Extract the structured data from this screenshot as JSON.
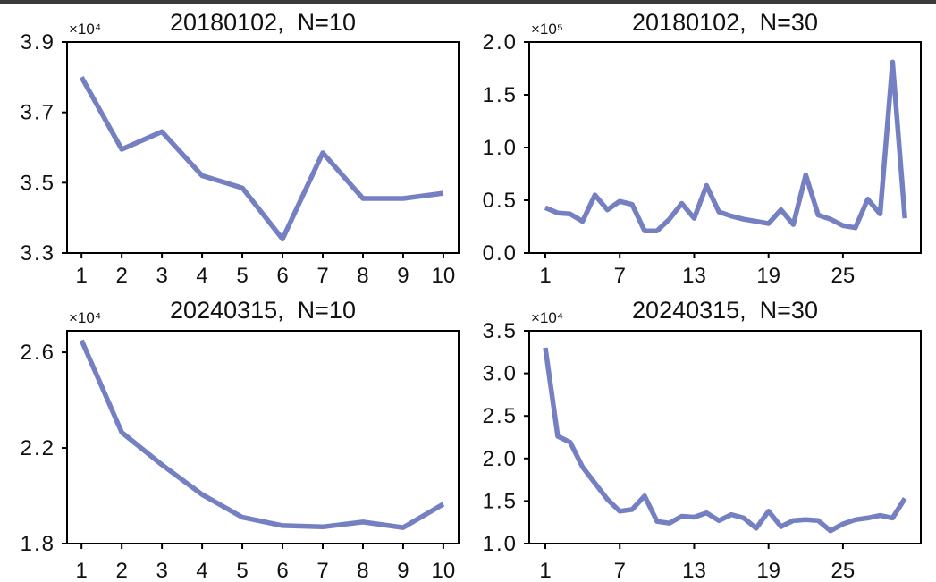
{
  "page": {
    "background": "#ffffff",
    "top_strip_color": "#3a3a3c",
    "axis_color": "#000000",
    "text_color": "#111111"
  },
  "chart_data": [
    {
      "type": "line",
      "title": "20180102,  N=10",
      "series_color": "#7580c2",
      "offset_label": "×10⁴",
      "x": [
        1,
        2,
        3,
        4,
        5,
        6,
        7,
        8,
        9,
        10
      ],
      "y": [
        38000,
        35950,
        36450,
        35200,
        34850,
        33400,
        35850,
        34550,
        34550,
        34700
      ],
      "xlim": [
        0.64,
        10.38
      ],
      "ylim": [
        33000,
        39000
      ],
      "xticks": [
        1,
        2,
        3,
        4,
        5,
        6,
        7,
        8,
        9,
        10
      ],
      "xtick_labels": [
        "1",
        "2",
        "3",
        "4",
        "5",
        "6",
        "7",
        "8",
        "9",
        "10"
      ],
      "yticks": [
        33000,
        35000,
        37000,
        39000
      ],
      "ytick_labels": [
        "3.3",
        "3.5",
        "3.7",
        "3.9"
      ],
      "grid": false,
      "legend": null
    },
    {
      "type": "line",
      "title": "20180102,  N=30",
      "series_color": "#7580c2",
      "offset_label": "×10⁵",
      "x": [
        1,
        2,
        3,
        4,
        5,
        6,
        7,
        8,
        9,
        10,
        11,
        12,
        13,
        14,
        15,
        16,
        17,
        18,
        19,
        20,
        21,
        22,
        23,
        24,
        25,
        26,
        27,
        28,
        29,
        30
      ],
      "y": [
        43000,
        38000,
        37000,
        30000,
        55000,
        41000,
        49000,
        46000,
        21000,
        21000,
        32000,
        47000,
        33000,
        64000,
        39000,
        35000,
        32000,
        30000,
        28000,
        41000,
        27000,
        74000,
        36000,
        32000,
        26000,
        24000,
        51000,
        37000,
        181000,
        33000
      ],
      "xlim": [
        -0.3,
        31.28
      ],
      "ylim": [
        0,
        200000
      ],
      "xticks": [
        1,
        7,
        13,
        19,
        25
      ],
      "xtick_labels": [
        "1",
        "7",
        "13",
        "19",
        "25"
      ],
      "yticks": [
        0,
        50000,
        100000,
        150000,
        200000
      ],
      "ytick_labels": [
        "0.0",
        "0.5",
        "1.0",
        "1.5",
        "2.0"
      ],
      "grid": false,
      "legend": null
    },
    {
      "type": "line",
      "title": "20240315,  N=10",
      "series_color": "#7580c2",
      "offset_label": "×10⁴",
      "x": [
        1,
        2,
        3,
        4,
        5,
        6,
        7,
        8,
        9,
        10
      ],
      "y": [
        26500,
        22650,
        21300,
        20050,
        19100,
        18750,
        18700,
        18900,
        18670,
        19650
      ],
      "xlim": [
        0.64,
        10.38
      ],
      "ylim": [
        18000,
        26900
      ],
      "xticks": [
        1,
        2,
        3,
        4,
        5,
        6,
        7,
        8,
        9,
        10
      ],
      "xtick_labels": [
        "1",
        "2",
        "3",
        "4",
        "5",
        "6",
        "7",
        "8",
        "9",
        "10"
      ],
      "yticks": [
        18000,
        22000,
        26000
      ],
      "ytick_labels": [
        "1.8",
        "2.2",
        "2.6"
      ],
      "grid": false,
      "legend": null
    },
    {
      "type": "line",
      "title": "20240315,  N=30",
      "series_color": "#7580c2",
      "offset_label": "×10⁴",
      "x": [
        1,
        2,
        3,
        4,
        5,
        6,
        7,
        8,
        9,
        10,
        11,
        12,
        13,
        14,
        15,
        16,
        17,
        18,
        19,
        20,
        21,
        22,
        23,
        24,
        25,
        26,
        27,
        28,
        29,
        30
      ],
      "y": [
        33000,
        22600,
        21900,
        19000,
        17100,
        15200,
        13800,
        14000,
        15600,
        12600,
        12400,
        13200,
        13100,
        13600,
        12700,
        13400,
        13000,
        11800,
        13800,
        12000,
        12700,
        12800,
        12700,
        11500,
        12300,
        12800,
        13000,
        13300,
        13000,
        15300
      ],
      "xlim": [
        -0.3,
        31.28
      ],
      "ylim": [
        10000,
        35000
      ],
      "xticks": [
        1,
        7,
        13,
        19,
        25
      ],
      "xtick_labels": [
        "1",
        "7",
        "13",
        "19",
        "25"
      ],
      "yticks": [
        10000,
        15000,
        20000,
        25000,
        30000,
        35000
      ],
      "ytick_labels": [
        "1.0",
        "1.5",
        "2.0",
        "2.5",
        "3.0",
        "3.5"
      ],
      "grid": false,
      "legend": null
    }
  ]
}
